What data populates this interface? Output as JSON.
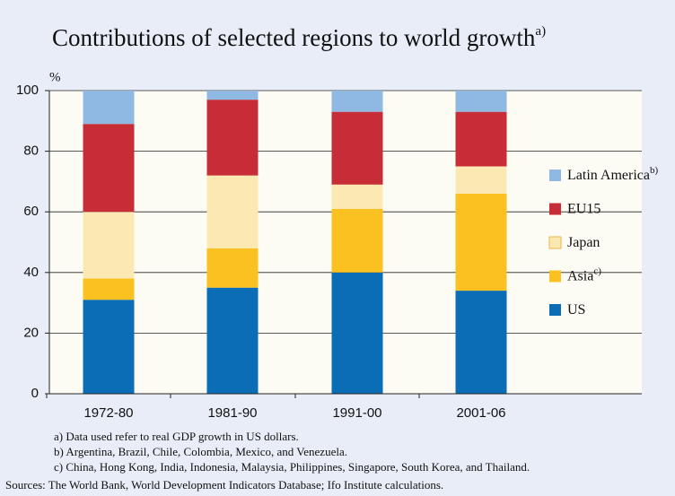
{
  "chart_data": {
    "type": "stacked_bar",
    "title": "Contributions of selected regions to world growth",
    "title_note": "a)",
    "y_label": "%",
    "categories": [
      "1972-80",
      "1981-90",
      "1991-00",
      "2001-06"
    ],
    "series": [
      {
        "name": "US",
        "color": "#0b6db5",
        "values": [
          31,
          35,
          40,
          34
        ]
      },
      {
        "name": "Asia",
        "note": "c)",
        "color": "#fbc121",
        "values": [
          7,
          13,
          21,
          32
        ]
      },
      {
        "name": "Japan",
        "color": "#fbe8b3",
        "values": [
          22,
          24,
          8,
          9
        ]
      },
      {
        "name": "EU15",
        "color": "#c62d37",
        "values": [
          29,
          25,
          24,
          18
        ]
      },
      {
        "name": "Latin America",
        "note": "b)",
        "color": "#8fb9e2",
        "values": [
          11,
          3,
          7,
          7
        ]
      }
    ],
    "ylim": [
      0,
      100
    ],
    "yticks": [
      0,
      20,
      40,
      60,
      80,
      100
    ],
    "grid": true,
    "legend": "right",
    "footnotes": [
      "a) Data used refer to real GDP growth in US dollars.",
      "b) Argentina, Brazil, Chile, Colombia, Mexico, and Venezuela.",
      "c) China, Hong Kong,  India, Indonesia, Malaysia, Philippines, Singapore, South Korea, and Thailand."
    ],
    "source": "Sources: The World Bank, World Development Indicators Database; Ifo Institute calculations."
  }
}
